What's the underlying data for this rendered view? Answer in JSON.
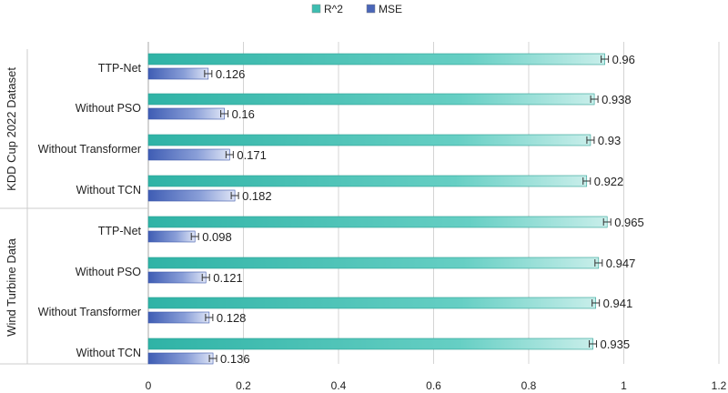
{
  "chart_data": {
    "type": "bar",
    "orientation": "horizontal",
    "title": "",
    "xlabel": "",
    "ylabel": "",
    "xlim": [
      0,
      1.2
    ],
    "x_ticks": [
      "0",
      "0.2",
      "0.4",
      "0.6",
      "0.8",
      "1",
      "1.2"
    ],
    "grid": true,
    "error_bars": true,
    "legend_position": "top-center",
    "groups": [
      {
        "name": "KDD Cup 2022 Dataset",
        "categories": [
          "TTP-Net",
          "Without PSO",
          "Without Transformer",
          "Without TCN"
        ],
        "series": [
          {
            "name": "R^2",
            "values": [
              0.96,
              0.938,
              0.93,
              0.922
            ],
            "labels": [
              "0.96",
              "0.938",
              "0.93",
              "0.922"
            ]
          },
          {
            "name": "MSE",
            "values": [
              0.126,
              0.16,
              0.171,
              0.182
            ],
            "labels": [
              "0.126",
              "0.16",
              "0.171",
              "0.182"
            ]
          }
        ]
      },
      {
        "name": "Wind Turbine Data",
        "categories": [
          "TTP-Net",
          "Without PSO",
          "Without Transformer",
          "Without TCN"
        ],
        "series": [
          {
            "name": "R^2",
            "values": [
              0.965,
              0.947,
              0.941,
              0.935
            ],
            "labels": [
              "0.965",
              "0.947",
              "0.941",
              "0.935"
            ]
          },
          {
            "name": "MSE",
            "values": [
              0.098,
              0.121,
              0.128,
              0.136
            ],
            "labels": [
              "0.098",
              "0.121",
              "0.128",
              "0.136"
            ]
          }
        ]
      }
    ],
    "colors": {
      "R^2": "#3dbdb0",
      "MSE": "#4a66b8"
    }
  }
}
